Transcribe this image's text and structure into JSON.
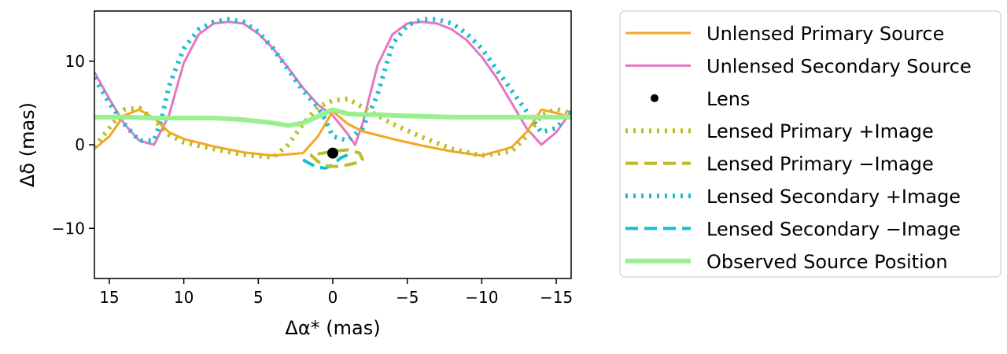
{
  "chart_data": {
    "type": "line",
    "xlabel": "Δα* (mas)",
    "ylabel": "Δδ (mas)",
    "xlim": [
      16,
      -16
    ],
    "ylim": [
      -16,
      16
    ],
    "xticks": [
      15,
      10,
      5,
      0,
      -5,
      -10,
      -15
    ],
    "xtick_labels": [
      "15",
      "10",
      "5",
      "0",
      "−5",
      "−10",
      "−15"
    ],
    "yticks": [
      -10,
      0,
      10
    ],
    "ytick_labels": [
      "−10",
      "0",
      "10"
    ],
    "legend_position": "outside-right",
    "series": [
      {
        "name": "Unlensed Primary Source",
        "color": "#f5a623",
        "dash": "solid",
        "width": 3,
        "x": [
          16,
          15,
          14,
          13,
          12,
          11,
          10,
          8,
          6,
          4,
          2,
          1,
          0,
          -1,
          -2,
          -4,
          -6,
          -8,
          -10,
          -12,
          -13,
          -14,
          -15,
          -16
        ],
        "y": [
          -0.5,
          1,
          3.5,
          4.2,
          3.2,
          1.5,
          0.7,
          -0.2,
          -0.9,
          -1.3,
          -1,
          1,
          4,
          2.5,
          1.6,
          0.7,
          -0.1,
          -0.8,
          -1.3,
          -0.3,
          1.5,
          4.2,
          3.8,
          3.2
        ]
      },
      {
        "name": "Unlensed Secondary Source",
        "color": "#e377c2",
        "dash": "solid",
        "width": 3,
        "x": [
          16,
          15,
          14,
          13,
          12,
          11,
          10,
          9,
          8,
          7,
          6,
          5,
          4,
          3,
          2,
          1,
          0,
          -1,
          -1.5,
          -2,
          -3,
          -4,
          -5,
          -6,
          -7,
          -8,
          -9,
          -10,
          -11,
          -12,
          -13,
          -14,
          -15,
          -16
        ],
        "y": [
          8.7,
          5.5,
          2.5,
          0.5,
          0,
          3.5,
          9.8,
          13.2,
          14.5,
          14.7,
          14.5,
          13.3,
          11.5,
          9.2,
          6.8,
          4.8,
          3.5,
          1.3,
          0,
          2.5,
          9.5,
          13.2,
          14.5,
          14.7,
          14.5,
          13.8,
          12.5,
          10.5,
          8,
          5,
          2,
          0,
          1.5,
          4
        ]
      },
      {
        "name": "Lens",
        "color": "#000000",
        "dash": "marker",
        "width": 0,
        "x": [
          0
        ],
        "y": [
          -1
        ]
      },
      {
        "name": "Lensed Primary +Image",
        "color": "#bcbd22",
        "dash": "dotted",
        "width": 6,
        "x": [
          16,
          15,
          14,
          13,
          12,
          11,
          10,
          8,
          6,
          4,
          3,
          2,
          1,
          0,
          -1,
          -2,
          -4,
          -6,
          -8,
          -10,
          -12,
          -13,
          -14,
          -15,
          -16
        ],
        "y": [
          -0.3,
          2,
          4.2,
          4.4,
          3,
          1.2,
          0.3,
          -0.5,
          -1.2,
          -1.5,
          0,
          2.5,
          4.5,
          5.3,
          5.5,
          4.5,
          2.5,
          0.9,
          -0.5,
          -1.3,
          -0.8,
          1,
          3.5,
          4.3,
          3.7
        ]
      },
      {
        "name": "Lensed Primary −Image",
        "color": "#bcbd22",
        "dash": "dashed",
        "width": 4,
        "x": [
          1.5,
          1,
          0.5,
          0,
          -0.5,
          -1,
          -1.5,
          -2,
          -1.8,
          -1,
          0,
          1,
          1.5
        ],
        "y": [
          -1.2,
          -2,
          -2.5,
          -2.6,
          -2.6,
          -2.4,
          -2.2,
          -1.8,
          -1,
          -0.6,
          -0.8,
          -1.1,
          -1.2
        ]
      },
      {
        "name": "Lensed Secondary +Image",
        "color": "#17becf",
        "dash": "dotted",
        "width": 6,
        "x": [
          16,
          15,
          14,
          13,
          12,
          11.5,
          11,
          10,
          9,
          8,
          7,
          6,
          5,
          4,
          3,
          2,
          1,
          0.5,
          0,
          -1,
          -2,
          -3,
          -4,
          -5,
          -6,
          -7,
          -8,
          -9,
          -10,
          -11,
          -12,
          -13,
          -14,
          -15,
          -16
        ],
        "y": [
          8,
          5,
          2.5,
          0.5,
          0.5,
          3,
          7,
          11.5,
          13.8,
          14.7,
          15,
          14.7,
          13.5,
          11.5,
          9,
          6.5,
          4.5,
          3,
          1,
          0.5,
          2,
          6,
          12,
          14.3,
          15,
          15,
          14.5,
          13.3,
          11.5,
          9,
          6.5,
          4,
          1.5,
          2,
          4
        ]
      },
      {
        "name": "Lensed Secondary −Image",
        "color": "#17becf",
        "dash": "dashed",
        "width": 4,
        "x": [
          2,
          1.5,
          1,
          0.5,
          0,
          -0.5,
          -1
        ],
        "y": [
          -1.8,
          -2.3,
          -2.7,
          -2.8,
          -2.4,
          -1.6,
          -1.2
        ]
      },
      {
        "name": "Observed Source Position",
        "color": "#98f08e",
        "dash": "solid",
        "width": 6,
        "x": [
          16,
          14,
          12,
          10,
          8,
          6,
          4,
          3,
          2,
          1,
          0,
          -1,
          -2,
          -3,
          -4,
          -6,
          -8,
          -10,
          -12,
          -14,
          -16
        ],
        "y": [
          3.3,
          3.3,
          3.2,
          3.2,
          3.2,
          3.0,
          2.6,
          2.3,
          2.6,
          3.4,
          4.2,
          3.7,
          3.6,
          3.6,
          3.5,
          3.4,
          3.3,
          3.3,
          3.3,
          3.3,
          3.3
        ]
      }
    ]
  }
}
